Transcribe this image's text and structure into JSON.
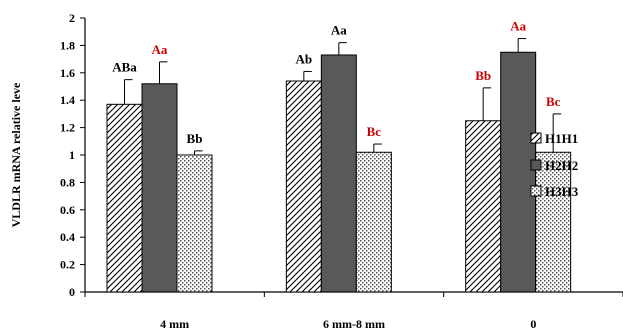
{
  "chart_data": {
    "type": "bar",
    "title": "",
    "xlabel": "",
    "ylabel": "VLDLR mRNA relative leve",
    "ylim": [
      0,
      2
    ],
    "yticks": [
      "0",
      "0.2",
      "0.4",
      "0.6",
      "0.8",
      "1",
      "1.2",
      "1.4",
      "1.6",
      "1.8",
      "2"
    ],
    "categories": [
      "4 mm",
      "6 mm-8 mm",
      "0"
    ],
    "legend_position": "right",
    "series": [
      {
        "name": "H1H1",
        "pattern": "diagonal-hatch",
        "values": [
          1.37,
          1.54,
          1.25
        ],
        "errors": [
          0.18,
          0.07,
          0.24
        ],
        "labels": [
          "ABa",
          "Ab",
          "Bb"
        ],
        "label_colors": [
          "#000000",
          "#000000",
          "#cc0000"
        ]
      },
      {
        "name": "H2H2",
        "pattern": "solid-gray",
        "values": [
          1.52,
          1.73,
          1.75
        ],
        "errors": [
          0.16,
          0.09,
          0.1
        ],
        "labels": [
          "Aa",
          "Aa",
          "Aa"
        ],
        "label_colors": [
          "#cc0000",
          "#000000",
          "#cc0000"
        ]
      },
      {
        "name": "H3H3",
        "pattern": "dotted",
        "values": [
          1.0,
          1.02,
          1.02
        ],
        "errors": [
          0.03,
          0.06,
          0.28
        ],
        "labels": [
          "Bb",
          "Bc",
          "Bc"
        ],
        "label_colors": [
          "#000000",
          "#cc0000",
          "#cc0000"
        ]
      }
    ],
    "colors": {
      "bar_dark": "#595959",
      "label_red": "#cc0000",
      "axis": "#000000"
    }
  }
}
